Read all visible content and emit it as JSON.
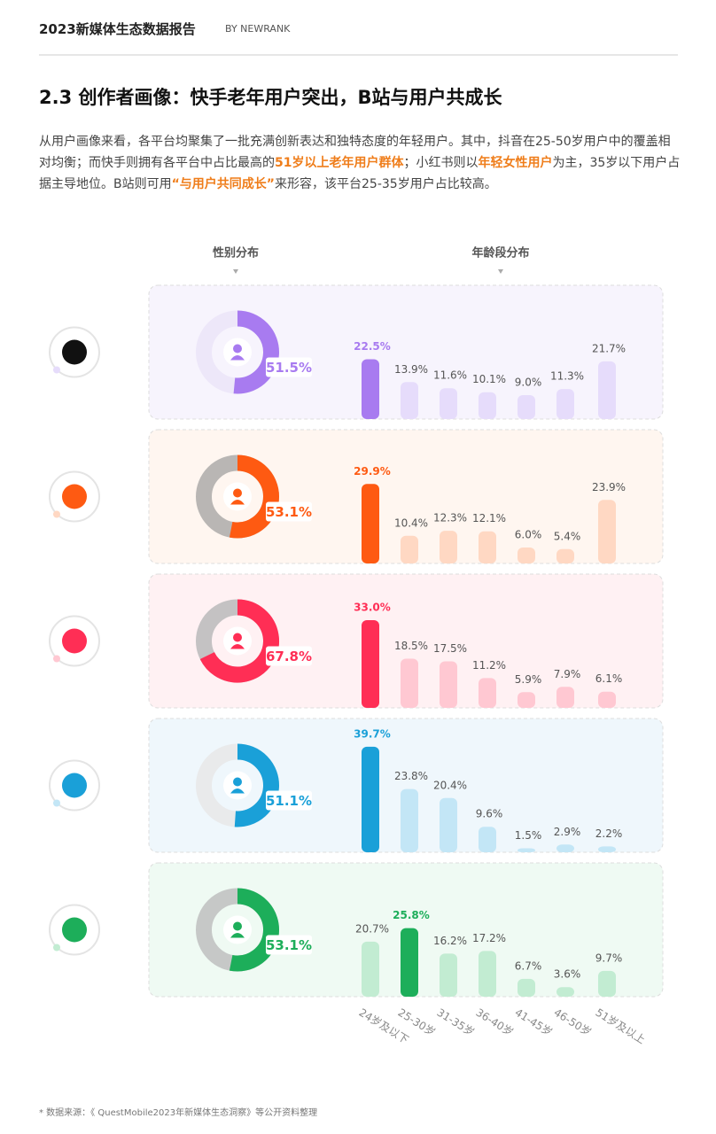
{
  "header": {
    "title": "2023新媒体生态数据报告",
    "brand": "BY NEWRANK"
  },
  "heading": "2.3 创作者画像：快手老年用户突出，B站与用户共成长",
  "paragraph": [
    {
      "text": "从用户画像来看，各平台均聚集了一批充满创新表达和独特态度的年轻用户。其中，抖音在25-50岁用户中的覆盖相对均衡；而快手则拥有各平台中占比最高的",
      "highlight": false
    },
    {
      "text": "51岁以上老年用户群体",
      "highlight": true
    },
    {
      "text": "；小红书则以",
      "highlight": false
    },
    {
      "text": "年轻女性用户",
      "highlight": true
    },
    {
      "text": "为主，35岁以下用户占据主导地位。B站则可用",
      "highlight": false
    },
    {
      "text": "“与用户共同成长”",
      "highlight": true
    },
    {
      "text": "来形容，该平台25-35岁用户占比较高。",
      "highlight": false
    }
  ],
  "column_labels": [
    "性别分布",
    "年龄段分布"
  ],
  "age_groups": [
    "24岁及以下",
    "25-30岁",
    "31-35岁",
    "36-40岁",
    "41-45岁",
    "46-50岁",
    "51岁及以上"
  ],
  "chart_data": [
    {
      "type": "pie",
      "values": [
        51.5
      ],
      "value_labels": [
        "51.5%"
      ],
      "color": "#a87bf0",
      "track_color": "#ede7f9"
    },
    {
      "type": "bar",
      "values": [
        22.5,
        13.9,
        11.6,
        10.1,
        9.0,
        11.3,
        21.7
      ],
      "value_labels": [
        "22.5%",
        "13.9%",
        "11.6%",
        "10.1%",
        "9.0%",
        "11.3%",
        "21.7%"
      ],
      "color": "#a87bf0",
      "light_color": "#e6dcfb",
      "highlight": 0,
      "panel_color": "#f7f4fd"
    },
    {
      "type": "pie",
      "values": [
        53.1
      ],
      "value_labels": [
        "53.1%"
      ],
      "color": "#fe5a12",
      "track_color": "#b9b6b4"
    },
    {
      "type": "bar",
      "values": [
        29.9,
        10.4,
        12.3,
        12.1,
        6.0,
        5.4,
        23.9
      ],
      "value_labels": [
        "29.9%",
        "10.4%",
        "12.3%",
        "12.1%",
        "6.0%",
        "5.4%",
        "23.9%"
      ],
      "color": "#fe5a12",
      "light_color": "#ffd8c3",
      "highlight": 0,
      "panel_color": "#fff6f0"
    },
    {
      "type": "pie",
      "values": [
        67.8
      ],
      "value_labels": [
        "67.8%"
      ],
      "color": "#ff2e55",
      "track_color": "#c4c2c3"
    },
    {
      "type": "bar",
      "values": [
        33.0,
        18.5,
        17.5,
        11.2,
        5.9,
        7.9,
        6.1
      ],
      "value_labels": [
        "33.0%",
        "18.5%",
        "17.5%",
        "11.2%",
        "5.9%",
        "7.9%",
        "6.1%"
      ],
      "color": "#ff2e55",
      "light_color": "#ffc8d2",
      "highlight": 0,
      "panel_color": "#fff1f3"
    },
    {
      "type": "pie",
      "values": [
        51.1
      ],
      "value_labels": [
        "51.1%"
      ],
      "color": "#1aa0d8",
      "track_color": "#e9eaeb"
    },
    {
      "type": "bar",
      "values": [
        39.7,
        23.8,
        20.4,
        9.6,
        1.5,
        2.9,
        2.2
      ],
      "value_labels": [
        "39.7%",
        "23.8%",
        "20.4%",
        "9.6%",
        "1.5%",
        "2.9%",
        "2.2%"
      ],
      "color": "#1aa0d8",
      "light_color": "#c3e6f6",
      "highlight": 0,
      "panel_color": "#eff7fc"
    },
    {
      "type": "pie",
      "values": [
        53.1
      ],
      "value_labels": [
        "53.1%"
      ],
      "color": "#1dae5a",
      "track_color": "#c6c8c7"
    },
    {
      "type": "bar",
      "values": [
        20.7,
        25.8,
        16.2,
        17.2,
        6.7,
        3.6,
        9.7
      ],
      "value_labels": [
        "20.7%",
        "25.8%",
        "16.2%",
        "17.2%",
        "6.7%",
        "3.6%",
        "9.7%"
      ],
      "color": "#1dae5a",
      "light_color": "#c2ecd2",
      "highlight": 1,
      "panel_color": "#effaf3"
    }
  ]
}
